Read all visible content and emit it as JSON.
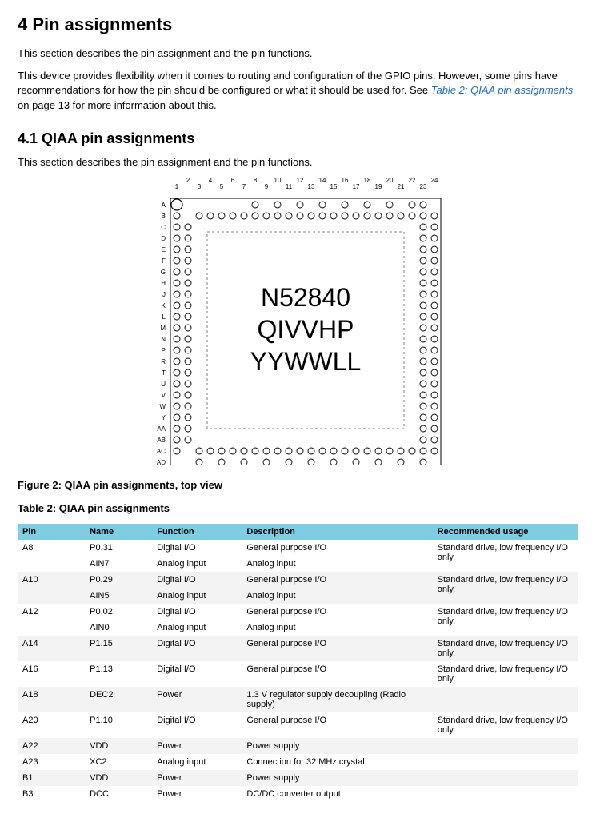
{
  "heading_main": "4 Pin assignments",
  "para1": "This section describes the pin assignment and the pin functions.",
  "para2a": "This device provides flexibility when it comes to routing and configuration of the GPIO pins. However, some pins have recommendations for how the pin should be configured or what it should be used for. See ",
  "para2_link": "Table 2: QIAA pin assignments",
  "para2b": " on page 13 for more information about this.",
  "heading_sub": "4.1 QIAA pin assignments",
  "para3": "This section describes the pin assignment and the pin functions.",
  "figure_caption": "Figure 2: QIAA pin assignments, top view",
  "table_caption": "Table 2: QIAA pin assignments",
  "chip": {
    "line1": "N52840",
    "line2": "QIVVHP",
    "line3": "YYWWLL",
    "col_labels": [
      "1",
      "2",
      "3",
      "4",
      "5",
      "6",
      "7",
      "8",
      "9",
      "10",
      "11",
      "12",
      "13",
      "14",
      "15",
      "16",
      "17",
      "18",
      "19",
      "20",
      "21",
      "22",
      "23",
      "24"
    ],
    "row_labels": [
      "A",
      "B",
      "C",
      "D",
      "E",
      "F",
      "G",
      "H",
      "J",
      "K",
      "L",
      "M",
      "N",
      "P",
      "R",
      "T",
      "U",
      "V",
      "W",
      "Y",
      "AA",
      "AB",
      "AC",
      "AD"
    ],
    "border_color": "#000000",
    "inner_dash_color": "#808080",
    "pin_fill": "#ffffff",
    "pin_stroke": "#000000",
    "label_fontsize": 8
  },
  "table": {
    "header_bg": "#7ecde0",
    "alt_bg": "#f3f3f3",
    "columns": [
      "Pin",
      "Name",
      "Function",
      "Description",
      "Recommended usage"
    ],
    "col_widths_pct": [
      12,
      12,
      16,
      34,
      26
    ],
    "rows": [
      {
        "shade": "even",
        "c": [
          "A8",
          "P0.31",
          "Digital I/O",
          "General purpose I/O",
          "Standard drive, low frequency I/O only."
        ],
        "rowspan_last": 2
      },
      {
        "shade": "even",
        "c": [
          "",
          "AIN7",
          "Analog input",
          "Analog input",
          ""
        ]
      },
      {
        "shade": "odd",
        "c": [
          "A10",
          "P0.29",
          "Digital I/O",
          "General purpose I/O",
          "Standard drive, low frequency I/O only."
        ],
        "rowspan_last": 2
      },
      {
        "shade": "odd",
        "c": [
          "",
          "AIN5",
          "Analog input",
          "Analog input",
          ""
        ]
      },
      {
        "shade": "even",
        "c": [
          "A12",
          "P0.02",
          "Digital I/O",
          "General purpose I/O",
          "Standard drive, low frequency I/O only."
        ],
        "rowspan_last": 2
      },
      {
        "shade": "even",
        "c": [
          "",
          "AIN0",
          "Analog input",
          "Analog input",
          ""
        ]
      },
      {
        "shade": "odd",
        "c": [
          "A14",
          "P1.15",
          "Digital I/O",
          "General purpose I/O",
          "Standard drive, low frequency I/O only."
        ]
      },
      {
        "shade": "even",
        "c": [
          "A16",
          "P1.13",
          "Digital I/O",
          "General purpose I/O",
          "Standard drive, low frequency I/O only."
        ]
      },
      {
        "shade": "odd",
        "c": [
          "A18",
          "DEC2",
          "Power",
          "1.3 V regulator supply decoupling (Radio supply)",
          ""
        ]
      },
      {
        "shade": "even",
        "c": [
          "A20",
          "P1.10",
          "Digital I/O",
          "General purpose I/O",
          "Standard drive, low frequency I/O only."
        ]
      },
      {
        "shade": "odd",
        "c": [
          "A22",
          "VDD",
          "Power",
          "Power supply",
          ""
        ]
      },
      {
        "shade": "even",
        "c": [
          "A23",
          "XC2",
          "Analog input",
          "Connection for 32 MHz crystal.",
          ""
        ]
      },
      {
        "shade": "odd",
        "c": [
          "B1",
          "VDD",
          "Power",
          "Power supply",
          ""
        ]
      },
      {
        "shade": "even",
        "c": [
          "B3",
          "DCC",
          "Power",
          "DC/DC converter output",
          ""
        ]
      }
    ]
  }
}
